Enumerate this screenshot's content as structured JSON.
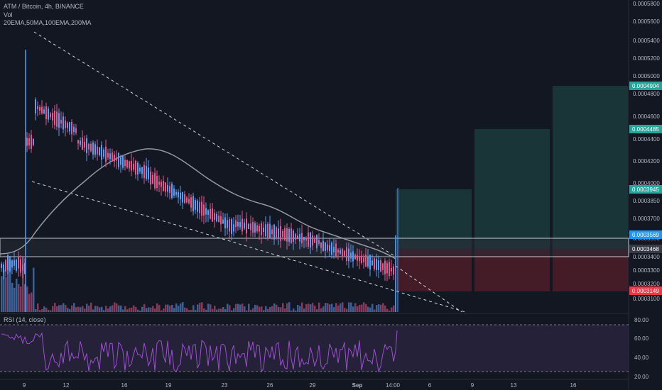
{
  "header": {
    "symbol_line": "ATM / Bitcoin, 4h, BINANCE",
    "volume_label": "Vol",
    "ma_label": "20EMA,50MA,100EMA,200MA"
  },
  "rsi_panel": {
    "label": "RSI (14, close)",
    "ticks": [
      "80.00",
      "60.00",
      "40.00",
      "20.00"
    ]
  },
  "price_axis": {
    "ticks": [
      "0.0005800",
      "0.0005600",
      "0.0005400",
      "0.0005200",
      "0.0005000",
      "0.0004800",
      "0.0004600",
      "0.0004400",
      "0.0004200",
      "0.0004000",
      "0.0003850",
      "0.0003700",
      "0.0003550",
      "0.0003400",
      "0.0003300",
      "0.0003200",
      "0.0003100"
    ]
  },
  "badges": [
    {
      "text": "0.0004904",
      "color": "#26a69a"
    },
    {
      "text": "0.0004485",
      "color": "#26a69a"
    },
    {
      "text": "0.0003945",
      "color": "#26a69a"
    },
    {
      "text": "0.0003569",
      "color": "#2196f3"
    },
    {
      "text": "0.0003468",
      "color": "#363a45"
    },
    {
      "text": "0.0003149",
      "color": "#f23645"
    }
  ],
  "time_axis": {
    "ticks": [
      "9",
      "12",
      "16",
      "19",
      "23",
      "26",
      "29",
      "Sep",
      "14:00",
      "6",
      "9",
      "13",
      "16"
    ]
  },
  "chart_data": {
    "type": "candlestick",
    "title": "ATM / Bitcoin, 4h, BINANCE",
    "x_start": "Aug 8",
    "x_end": "Sep 4 14:00",
    "ylim": [
      0.00031,
      0.00058
    ],
    "entry_zone": [
      0.0003468,
      0.0003569
    ],
    "targets": [
      0.0003945,
      0.0004485,
      0.0004904
    ],
    "stop": 0.0003149,
    "last_price": 0.0003569,
    "pattern": "falling wedge",
    "colors": {
      "up": "#26a69a",
      "down": "#ef5350",
      "ma": "#9598a1",
      "candle_up": "#5b9cf6",
      "candle_down": "#e5578a"
    },
    "rsi": {
      "upper": 70,
      "lower": 30,
      "last": 69
    }
  }
}
